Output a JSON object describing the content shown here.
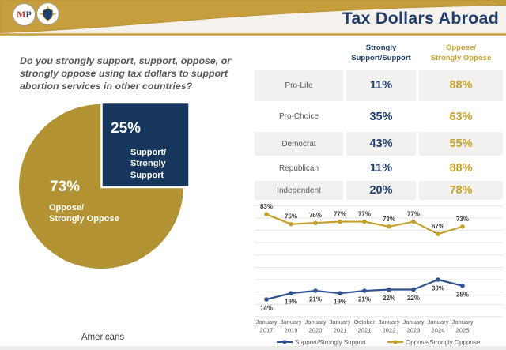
{
  "header": {
    "title": "Tax Dollars Abroad",
    "mp_logo_m": "M",
    "mp_logo_p": "P"
  },
  "survey": {
    "question": "Do you strongly support, support, oppose, or strongly oppose using tax dollars to support abortion services in other countries?",
    "audience_label": "Americans"
  },
  "pie_display": {
    "support_pct": "25%",
    "support_label": "Support/\nStrongly\nSupport",
    "oppose_pct": "73%",
    "oppose_label": "Oppose/\nStrongly Oppose"
  },
  "table": {
    "header_support": "Strongly\nSupport/Support",
    "header_oppose": "Oppose/\nStrongly Oppose",
    "rows": [
      {
        "label": "Pro-Life",
        "support": "11%",
        "oppose": "88%"
      },
      {
        "label": "Pro-Choice",
        "support": "35%",
        "oppose": "63%"
      },
      {
        "label": "Democrat",
        "support": "43%",
        "oppose": "55%"
      },
      {
        "label": "Republican",
        "support": "11%",
        "oppose": "88%"
      },
      {
        "label": "Independent",
        "support": "20%",
        "oppose": "78%"
      }
    ]
  },
  "colors": {
    "gold_band": "#C79E3E",
    "gold_pie": "#B29232",
    "gold_line": "#C4A02C",
    "gold_text": "#C9A22C",
    "navy_pie": "#17365D",
    "navy_text": "#1F3E6E",
    "blue_line": "#31528F",
    "gray_text": "#595959",
    "gridline": "#DCDCDC"
  },
  "chart_data": [
    {
      "type": "pie",
      "title": "Americans",
      "slices": [
        {
          "label": "Oppose/Strongly Oppose",
          "value": 73,
          "color": "#B29232"
        },
        {
          "label": "Support/Strongly Support",
          "value": 25,
          "color": "#17365D"
        }
      ]
    },
    {
      "type": "line",
      "categories": [
        "January 2017",
        "January 2019",
        "January 2020",
        "January 2021",
        "October 2021",
        "January 2022",
        "January 2023",
        "January 2024",
        "January 2025"
      ],
      "series": [
        {
          "name": "Support/Strongly Support",
          "color": "#31528F",
          "values": [
            14,
            19,
            21,
            19,
            21,
            22,
            22,
            30,
            25
          ],
          "label_position": "below"
        },
        {
          "name": "Oppose/Strongly Opppose",
          "color": "#C4A02C",
          "values": [
            83,
            75,
            76,
            77,
            77,
            73,
            77,
            67,
            73
          ],
          "label_position": "above"
        }
      ],
      "ylim": [
        0,
        100
      ],
      "grid": true,
      "legend_position": "bottom"
    }
  ]
}
